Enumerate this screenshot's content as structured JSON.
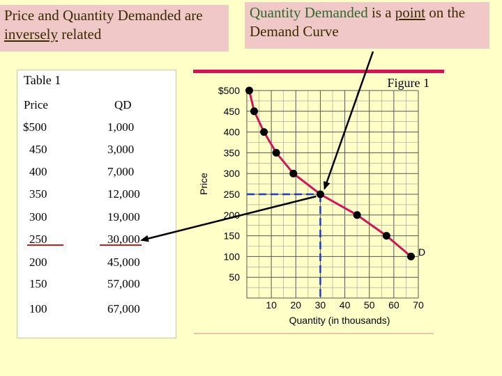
{
  "callouts": {
    "left": {
      "pre": "Price and Quantity Demanded are ",
      "underlined": "inversely",
      "post": " related"
    },
    "right": {
      "green1": "Quantity Demanded",
      "mid": " is a ",
      "underlined": "point",
      "post": " on the Demand Curve"
    }
  },
  "table": {
    "title": "Table 1",
    "headers": [
      "Price",
      "QD"
    ],
    "rows": [
      [
        "$500",
        "1,000"
      ],
      [
        "450",
        "3,000"
      ],
      [
        "400",
        "7,000"
      ],
      [
        "350",
        "12,000"
      ],
      [
        "300",
        "19,000"
      ],
      [
        "250",
        "30,000"
      ],
      [
        "200",
        "45,000"
      ],
      [
        "150",
        "57,000"
      ],
      [
        "100",
        "67,000"
      ]
    ]
  },
  "colors": {
    "curve": "#d4145a",
    "guide": "#1e3cb4",
    "arrow": "#000000",
    "callout_bg": "#f0c8c8",
    "page_bg": "#ffffc8"
  },
  "chart_data": {
    "type": "line",
    "title": "Figure 1",
    "xlabel": "Quantity (in thousands)",
    "ylabel": "Price",
    "x_ticks": [
      "10",
      "20",
      "30",
      "40",
      "50",
      "60",
      "70"
    ],
    "y_ticks": [
      "$500",
      "450",
      "400",
      "350",
      "300",
      "250",
      "200",
      "150",
      "100",
      "50"
    ],
    "xlim": [
      0,
      70
    ],
    "ylim": [
      0,
      500
    ],
    "grid": true,
    "series": [
      {
        "name": "D",
        "x": [
          1,
          3,
          7,
          12,
          19,
          30,
          45,
          57,
          67
        ],
        "y": [
          500,
          450,
          400,
          350,
          300,
          250,
          200,
          150,
          100
        ]
      }
    ],
    "highlight": {
      "x": 30,
      "y": 250
    }
  }
}
